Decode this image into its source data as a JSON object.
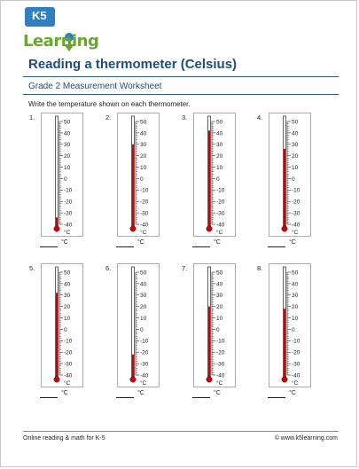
{
  "logo": {
    "badge": "K5",
    "wordmark": "Learning"
  },
  "header": {
    "title": "Reading a thermometer (Celsius)",
    "subtitle": "Grade 2 Measurement Worksheet"
  },
  "instructions": "Write the temperature shown on each thermometer.",
  "scale": {
    "labels": [
      "50",
      "40",
      "30",
      "20",
      "10",
      "0",
      "-10",
      "-20",
      "-30",
      "-40"
    ],
    "unit": "°C",
    "min": -40,
    "max": 50
  },
  "problems": [
    {
      "number": "1.",
      "reading": -34
    },
    {
      "number": "2.",
      "reading": 30
    },
    {
      "number": "3.",
      "reading": 42
    },
    {
      "number": "4.",
      "reading": 26
    },
    {
      "number": "5.",
      "reading": 32
    },
    {
      "number": "6.",
      "reading": -22
    },
    {
      "number": "7.",
      "reading": 20
    },
    {
      "number": "8.",
      "reading": 18
    }
  ],
  "answer_unit": "°C",
  "colors": {
    "mercury": "#d40000",
    "title": "#1f4e79",
    "logo_green": "#6aa72f",
    "logo_blue": "#2f7fc1"
  },
  "footer": {
    "left": "Online reading & math for K-5",
    "right": "© www.k5learning.com"
  }
}
